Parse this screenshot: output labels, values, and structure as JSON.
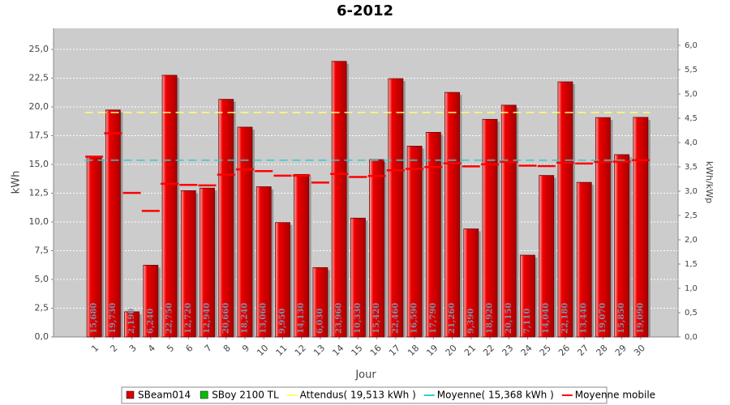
{
  "chart_data": {
    "type": "bar",
    "title": "6-2012",
    "x_label": "Jour",
    "y_label": "kWh",
    "y2_label": "kWh/kWp",
    "categories": [
      "1",
      "2",
      "3",
      "4",
      "5",
      "6",
      "7",
      "8",
      "9",
      "10",
      "11",
      "12",
      "13",
      "14",
      "15",
      "16",
      "17",
      "18",
      "19",
      "20",
      "21",
      "22",
      "23",
      "24",
      "25",
      "26",
      "27",
      "28",
      "29",
      "30"
    ],
    "series": [
      {
        "name": "SBeam014",
        "color": "#dd0000",
        "values": [
          15.68,
          19.73,
          2.19,
          6.24,
          22.75,
          12.72,
          12.94,
          20.66,
          18.24,
          13.06,
          9.95,
          14.13,
          6.03,
          23.96,
          10.33,
          15.42,
          22.46,
          16.59,
          17.79,
          21.26,
          9.39,
          18.92,
          20.15,
          7.11,
          14.04,
          22.18,
          13.44,
          19.07,
          15.85,
          19.09
        ],
        "value_labels": [
          "15,680",
          "19,730",
          "2,190",
          "6,240",
          "22,750",
          "12,720",
          "12,940",
          "20,660",
          "18,240",
          "13,060",
          "9,950",
          "14,130",
          "6,030",
          "23,960",
          "10,330",
          "15,420",
          "22,460",
          "16,590",
          "17,790",
          "21,260",
          "9,390",
          "18,920",
          "20,150",
          "7,110",
          "14,040",
          "22,180",
          "13,440",
          "19,070",
          "15,850",
          "19,090"
        ]
      },
      {
        "name": "SBoy 2100 TL",
        "color": "#00c000"
      },
      {
        "name": "Attendus( 19,513 kWh )",
        "color": "#ffff66",
        "value": 19.513
      },
      {
        "name": "Moyenne( 15,368 kWh )",
        "color": "#33cccc",
        "value": 15.368
      },
      {
        "name": "Moyenne mobile",
        "color": "#ff0000",
        "values": [
          15.68,
          17.71,
          12.53,
          10.96,
          13.32,
          13.22,
          13.18,
          14.11,
          14.57,
          14.42,
          14.02,
          14.03,
          13.42,
          14.17,
          13.91,
          14.0,
          14.49,
          14.61,
          14.77,
          15.1,
          14.83,
          15.01,
          15.23,
          14.89,
          14.86,
          15.14,
          15.08,
          15.22,
          15.24,
          15.37
        ]
      }
    ],
    "ylim": [
      0,
      26.83
    ],
    "yticks": [
      {
        "value": 0,
        "label": "0,0"
      },
      {
        "value": 2.5,
        "label": "2,5"
      },
      {
        "value": 5,
        "label": "5,0"
      },
      {
        "value": 7.5,
        "label": "7,5"
      },
      {
        "value": 10,
        "label": "10,0"
      },
      {
        "value": 12.5,
        "label": "12,5"
      },
      {
        "value": 15,
        "label": "15,0"
      },
      {
        "value": 17.5,
        "label": "17,5"
      },
      {
        "value": 20,
        "label": "20,0"
      },
      {
        "value": 22.5,
        "label": "22,5"
      },
      {
        "value": 25,
        "label": "25,0"
      }
    ],
    "y2lim": [
      0,
      6.35
    ],
    "y2ticks": [
      {
        "value": 0,
        "label": "0,0"
      },
      {
        "value": 0.5,
        "label": "0,5"
      },
      {
        "value": 1,
        "label": "1,0"
      },
      {
        "value": 1.5,
        "label": "1,5"
      },
      {
        "value": 2,
        "label": "2,0"
      },
      {
        "value": 2.5,
        "label": "2,5"
      },
      {
        "value": 3,
        "label": "3,0"
      },
      {
        "value": 3.5,
        "label": "3,5"
      },
      {
        "value": 4,
        "label": "4,0"
      },
      {
        "value": 4.5,
        "label": "4,5"
      },
      {
        "value": 5,
        "label": "5,0"
      },
      {
        "value": 5.5,
        "label": "5,5"
      },
      {
        "value": 6,
        "label": "6,0"
      }
    ],
    "grid": true
  }
}
